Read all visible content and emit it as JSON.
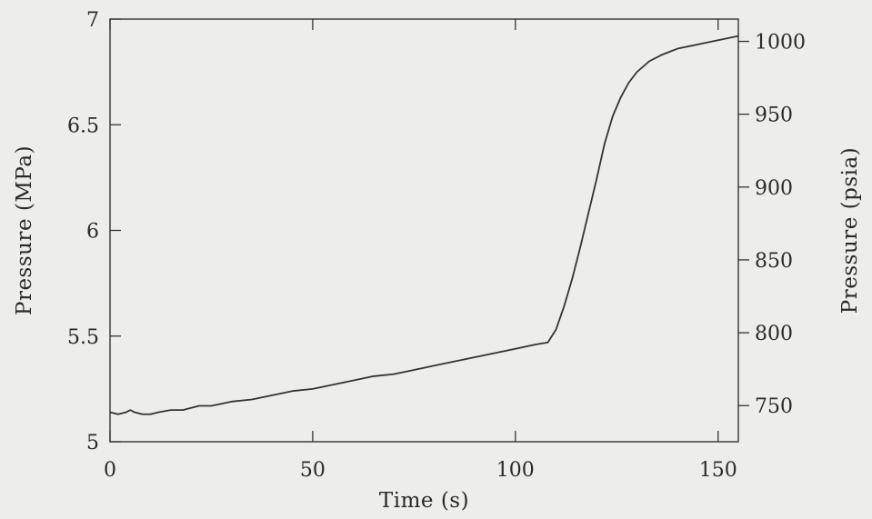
{
  "chart_data": {
    "type": "line",
    "title": "",
    "xlabel": "Time (s)",
    "ylabel": "Pressure (MPa)",
    "ylabel_right": "Pressure (psia)",
    "xlim": [
      0,
      155
    ],
    "ylim": [
      5,
      7
    ],
    "ylim_right_psia": [
      725.2,
      1015.3
    ],
    "x_ticks": [
      0,
      50,
      100,
      150
    ],
    "y_ticks": [
      5,
      5.5,
      6,
      6.5,
      7
    ],
    "y_ticks_right": [
      750,
      800,
      850,
      900,
      950,
      1000
    ],
    "grid": false,
    "legend": "none",
    "line_color": "#333333",
    "series": [
      {
        "x": [
          0,
          2,
          4,
          5,
          6,
          8,
          10,
          12,
          15,
          18,
          20,
          22,
          25,
          30,
          35,
          40,
          45,
          50,
          55,
          60,
          65,
          70,
          75,
          80,
          85,
          90,
          95,
          100,
          105,
          108,
          110,
          112,
          114,
          116,
          118,
          120,
          122,
          124,
          126,
          128,
          130,
          133,
          136,
          140,
          145,
          150,
          155
        ],
        "y": [
          5.14,
          5.13,
          5.14,
          5.15,
          5.14,
          5.13,
          5.13,
          5.14,
          5.15,
          5.15,
          5.16,
          5.17,
          5.17,
          5.19,
          5.2,
          5.22,
          5.24,
          5.25,
          5.27,
          5.29,
          5.31,
          5.32,
          5.34,
          5.36,
          5.38,
          5.4,
          5.42,
          5.44,
          5.46,
          5.47,
          5.53,
          5.64,
          5.77,
          5.92,
          6.08,
          6.24,
          6.41,
          6.54,
          6.63,
          6.7,
          6.75,
          6.8,
          6.83,
          6.86,
          6.88,
          6.9,
          6.92
        ]
      }
    ]
  }
}
